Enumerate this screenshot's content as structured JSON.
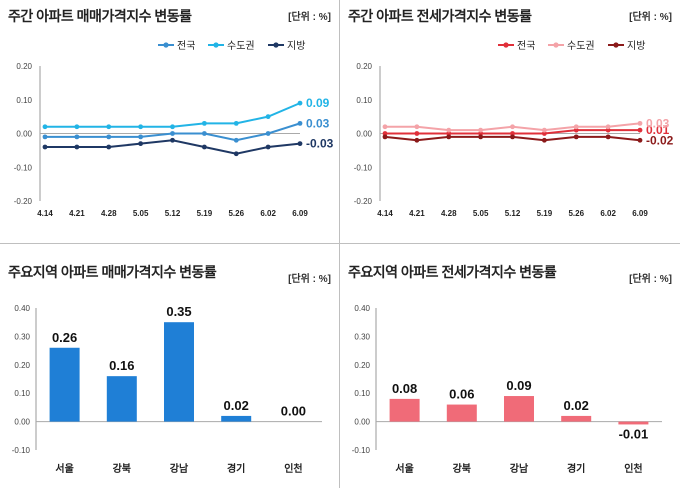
{
  "colors": {
    "sale_national": "#3a8fd0",
    "sale_capital": "#22b4e6",
    "sale_local": "#1f3864",
    "jeonse_national": "#e0303a",
    "jeonse_capital": "#f4a3a8",
    "jeonse_local": "#8b1a1a",
    "sale_bar": "#1f7fd6",
    "jeonse_bar": "#f06b78"
  },
  "chart_data": [
    {
      "type": "line",
      "title": "주간 아파트 매매가격지수 변동률",
      "unit": "[단위 : %]",
      "x": [
        "4.14",
        "4.21",
        "4.28",
        "5.05",
        "5.12",
        "5.19",
        "5.26",
        "6.02",
        "6.09"
      ],
      "ylim": [
        -0.2,
        0.2
      ],
      "yticks": [
        "0.20",
        "0.10",
        "0.00",
        "-0.10",
        "-0.20"
      ],
      "legend_position": "top-right",
      "series": [
        {
          "name": "전국",
          "values": [
            -0.01,
            -0.01,
            -0.01,
            -0.01,
            0.0,
            0.0,
            -0.02,
            0.0,
            0.03
          ],
          "end_label": "0.03",
          "color_key": "sale_national"
        },
        {
          "name": "수도권",
          "values": [
            0.02,
            0.02,
            0.02,
            0.02,
            0.02,
            0.03,
            0.03,
            0.05,
            0.09
          ],
          "end_label": "0.09",
          "color_key": "sale_capital"
        },
        {
          "name": "지방",
          "values": [
            -0.04,
            -0.04,
            -0.04,
            -0.03,
            -0.02,
            -0.04,
            -0.06,
            -0.04,
            -0.03
          ],
          "end_label": "-0.03",
          "color_key": "sale_local"
        }
      ]
    },
    {
      "type": "line",
      "title": "주간 아파트 전세가격지수 변동률",
      "unit": "[단위 : %]",
      "x": [
        "4.14",
        "4.21",
        "4.28",
        "5.05",
        "5.12",
        "5.19",
        "5.26",
        "6.02",
        "6.09"
      ],
      "ylim": [
        -0.2,
        0.2
      ],
      "yticks": [
        "0.20",
        "0.10",
        "0.00",
        "-0.10",
        "-0.20"
      ],
      "legend_position": "top-right",
      "series": [
        {
          "name": "전국",
          "values": [
            0.0,
            0.0,
            0.0,
            0.0,
            0.0,
            0.0,
            0.01,
            0.01,
            0.01
          ],
          "end_label": "0.01",
          "color_key": "jeonse_national"
        },
        {
          "name": "수도권",
          "values": [
            0.02,
            0.02,
            0.01,
            0.01,
            0.02,
            0.01,
            0.02,
            0.02,
            0.03
          ],
          "end_label": "0.03",
          "color_key": "jeonse_capital"
        },
        {
          "name": "지방",
          "values": [
            -0.01,
            -0.02,
            -0.01,
            -0.01,
            -0.01,
            -0.02,
            -0.01,
            -0.01,
            -0.02
          ],
          "end_label": "-0.02",
          "color_key": "jeonse_local"
        }
      ]
    },
    {
      "type": "bar",
      "title": "주요지역 아파트 매매가격지수 변동률",
      "unit": "[단위 : %]",
      "categories": [
        "서울",
        "강북",
        "강남",
        "경기",
        "인천"
      ],
      "values": [
        0.26,
        0.16,
        0.35,
        0.02,
        0.0
      ],
      "labels": [
        "0.26",
        "0.16",
        "0.35",
        "0.02",
        "0.00"
      ],
      "ylim": [
        -0.1,
        0.4
      ],
      "yticks": [
        "0.40",
        "0.30",
        "0.20",
        "0.10",
        "0.00",
        "-0.10"
      ],
      "color_key": "sale_bar"
    },
    {
      "type": "bar",
      "title": "주요지역 아파트 전세가격지수 변동률",
      "unit": "[단위 : %]",
      "categories": [
        "서울",
        "강북",
        "강남",
        "경기",
        "인천"
      ],
      "values": [
        0.08,
        0.06,
        0.09,
        0.02,
        -0.01
      ],
      "labels": [
        "0.08",
        "0.06",
        "0.09",
        "0.02",
        "-0.01"
      ],
      "ylim": [
        -0.1,
        0.4
      ],
      "yticks": [
        "0.40",
        "0.30",
        "0.20",
        "0.10",
        "0.00",
        "-0.10"
      ],
      "color_key": "jeonse_bar"
    }
  ]
}
